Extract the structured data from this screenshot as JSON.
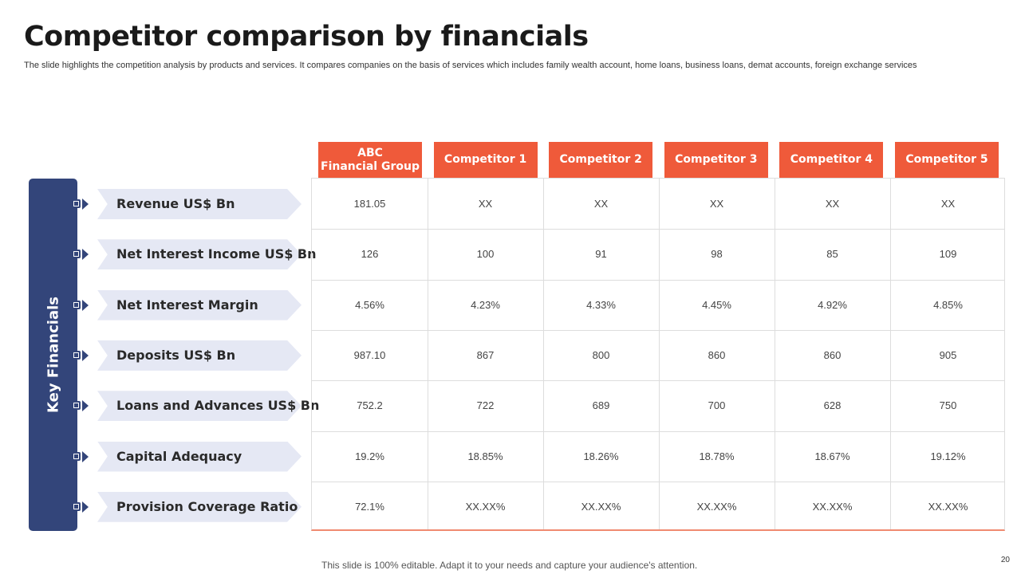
{
  "slide": {
    "title": "Competitor comparison by financials",
    "subtitle": "The slide highlights the competition analysis by products and services. It compares companies on the basis of services which includes family wealth account, home loans, business loans, demat accounts, foreign exchange services",
    "side_label": "Key Financials",
    "footer_note": "This slide is 100% editable. Adapt it to your needs and capture your audience's attention.",
    "page_number": "20"
  },
  "colors": {
    "navy": "#33457a",
    "accent": "#ef5a3a",
    "label_bg": "#e5e8f4"
  },
  "table": {
    "columns": [
      "ABC\nFinancial Group",
      "Competitor 1",
      "Competitor 2",
      "Competitor 3",
      "Competitor 4",
      "Competitor 5"
    ],
    "rows": [
      {
        "label": "Revenue US$ Bn",
        "values": [
          "181.05",
          "XX",
          "XX",
          "XX",
          "XX",
          "XX"
        ]
      },
      {
        "label": "Net Interest  Income US$ Bn",
        "values": [
          "126",
          "100",
          "91",
          "98",
          "85",
          "109"
        ]
      },
      {
        "label": "Net Interest  Margin",
        "values": [
          "4.56%",
          "4.23%",
          "4.33%",
          "4.45%",
          "4.92%",
          "4.85%"
        ]
      },
      {
        "label": "Deposits US$ Bn",
        "values": [
          "987.10",
          "867",
          "800",
          "860",
          "860",
          "905"
        ]
      },
      {
        "label": "Loans and Advances US$ Bn",
        "values": [
          "752.2",
          "722",
          "689",
          "700",
          "628",
          "750"
        ]
      },
      {
        "label": "Capital Adequacy",
        "values": [
          "19.2%",
          "18.85%",
          "18.26%",
          "18.78%",
          "18.67%",
          "19.12%"
        ]
      },
      {
        "label": "Provision Coverage Ratio",
        "values": [
          "72.1%",
          "XX.XX%",
          "XX.XX%",
          "XX.XX%",
          "XX.XX%",
          "XX.XX%"
        ]
      }
    ]
  }
}
